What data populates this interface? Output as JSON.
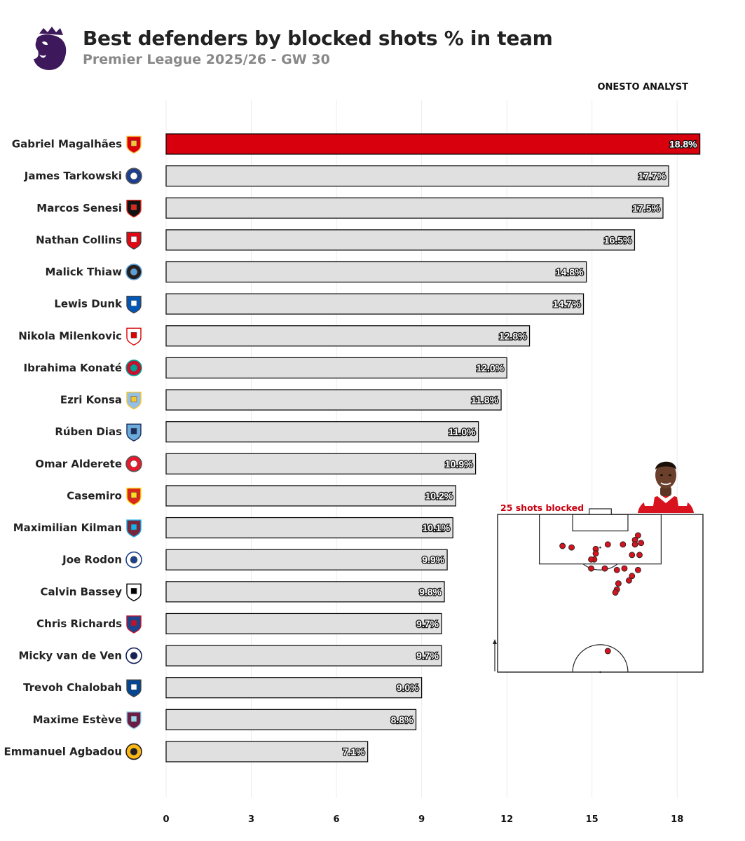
{
  "header": {
    "title": "Best defenders by blocked shots % in team",
    "subtitle": "Premier League 2025/26 - GW 30",
    "credit": "ONESTO ANALYST",
    "logo_icon": "premier-league-lion-icon"
  },
  "colors": {
    "highlight": "#d9000d",
    "bar": "#e0e0e0",
    "bar_edge": "#000000",
    "shot_marker": "#d4141e",
    "inset_label": "#c8000f"
  },
  "chart_data": {
    "type": "bar",
    "orientation": "horizontal",
    "title": "Best defenders by blocked shots % in team",
    "subtitle": "Premier League 2025/26 - GW 30",
    "xlim": [
      0,
      19.5
    ],
    "xticks": [
      "0",
      "3",
      "6",
      "9",
      "12",
      "15",
      "18"
    ],
    "grid": "vertical",
    "highlight_index": 0,
    "bars": [
      {
        "label": "Gabriel Magalhães",
        "value": 18.8,
        "value_label": "18.8%",
        "badge": "arsenal-badge-icon"
      },
      {
        "label": "James Tarkowski",
        "value": 17.7,
        "value_label": "17.7%",
        "badge": "everton-badge-icon"
      },
      {
        "label": "Marcos Senesi",
        "value": 17.5,
        "value_label": "17.5%",
        "badge": "bournemouth-badge-icon"
      },
      {
        "label": "Nathan Collins",
        "value": 16.5,
        "value_label": "16.5%",
        "badge": "brentford-badge-icon"
      },
      {
        "label": "Malick Thiaw",
        "value": 14.8,
        "value_label": "14.8%",
        "badge": "newcastle-badge-icon"
      },
      {
        "label": "Lewis Dunk",
        "value": 14.7,
        "value_label": "14.7%",
        "badge": "brighton-badge-icon"
      },
      {
        "label": "Nikola Milenkovic",
        "value": 12.8,
        "value_label": "12.8%",
        "badge": "nottingham-forest-badge-icon"
      },
      {
        "label": "Ibrahima Konaté",
        "value": 12.0,
        "value_label": "12.0%",
        "badge": "liverpool-badge-icon"
      },
      {
        "label": "Ezri Konsa",
        "value": 11.8,
        "value_label": "11.8%",
        "badge": "aston-villa-badge-icon"
      },
      {
        "label": "Rúben Dias",
        "value": 11.0,
        "value_label": "11.0%",
        "badge": "manchester-city-badge-icon"
      },
      {
        "label": "Omar Alderete",
        "value": 10.9,
        "value_label": "10.9%",
        "badge": "sunderland-badge-icon"
      },
      {
        "label": "Casemiro",
        "value": 10.2,
        "value_label": "10.2%",
        "badge": "manchester-united-badge-icon"
      },
      {
        "label": "Maximilian Kilman",
        "value": 10.1,
        "value_label": "10.1%",
        "badge": "west-ham-badge-icon"
      },
      {
        "label": "Joe Rodon",
        "value": 9.9,
        "value_label": "9.9%",
        "badge": "leeds-badge-icon"
      },
      {
        "label": "Calvin Bassey",
        "value": 9.8,
        "value_label": "9.8%",
        "badge": "fulham-badge-icon"
      },
      {
        "label": "Chris Richards",
        "value": 9.7,
        "value_label": "9.7%",
        "badge": "crystal-palace-badge-icon"
      },
      {
        "label": "Micky van de Ven",
        "value": 9.7,
        "value_label": "9.7%",
        "badge": "tottenham-badge-icon"
      },
      {
        "label": "Trevoh Chalobah",
        "value": 9.0,
        "value_label": "9.0%",
        "badge": "chelsea-badge-icon"
      },
      {
        "label": "Maxime Estève",
        "value": 8.8,
        "value_label": "8.8%",
        "badge": "burnley-badge-icon"
      },
      {
        "label": "Emmanuel Agbadou",
        "value": 7.1,
        "value_label": "7.1%",
        "badge": "wolves-badge-icon"
      }
    ],
    "inset": {
      "type": "scatter",
      "label": "25 shots blocked",
      "pitch": "half-pitch",
      "player_icon": "player-photo-icon",
      "x_range": [
        0,
        68
      ],
      "y_range": [
        0,
        52.5
      ],
      "shots": [
        {
          "x": 21.5,
          "y": 42.0
        },
        {
          "x": 24.5,
          "y": 41.5
        },
        {
          "x": 32.5,
          "y": 41.0
        },
        {
          "x": 32.5,
          "y": 39.5
        },
        {
          "x": 32.0,
          "y": 37.5
        },
        {
          "x": 31.0,
          "y": 37.5
        },
        {
          "x": 36.5,
          "y": 42.5
        },
        {
          "x": 41.5,
          "y": 42.5
        },
        {
          "x": 45.5,
          "y": 44.0
        },
        {
          "x": 46.5,
          "y": 45.5
        },
        {
          "x": 45.5,
          "y": 42.5
        },
        {
          "x": 47.5,
          "y": 43.0
        },
        {
          "x": 44.5,
          "y": 39.0
        },
        {
          "x": 47.0,
          "y": 39.0
        },
        {
          "x": 31.0,
          "y": 34.5
        },
        {
          "x": 35.5,
          "y": 34.5
        },
        {
          "x": 39.5,
          "y": 34.0
        },
        {
          "x": 42.0,
          "y": 34.5
        },
        {
          "x": 46.5,
          "y": 34.0
        },
        {
          "x": 44.5,
          "y": 32.0
        },
        {
          "x": 43.5,
          "y": 30.5
        },
        {
          "x": 40.0,
          "y": 29.5
        },
        {
          "x": 39.5,
          "y": 27.5
        },
        {
          "x": 39.0,
          "y": 26.5
        },
        {
          "x": 36.5,
          "y": 7.0
        }
      ]
    }
  }
}
